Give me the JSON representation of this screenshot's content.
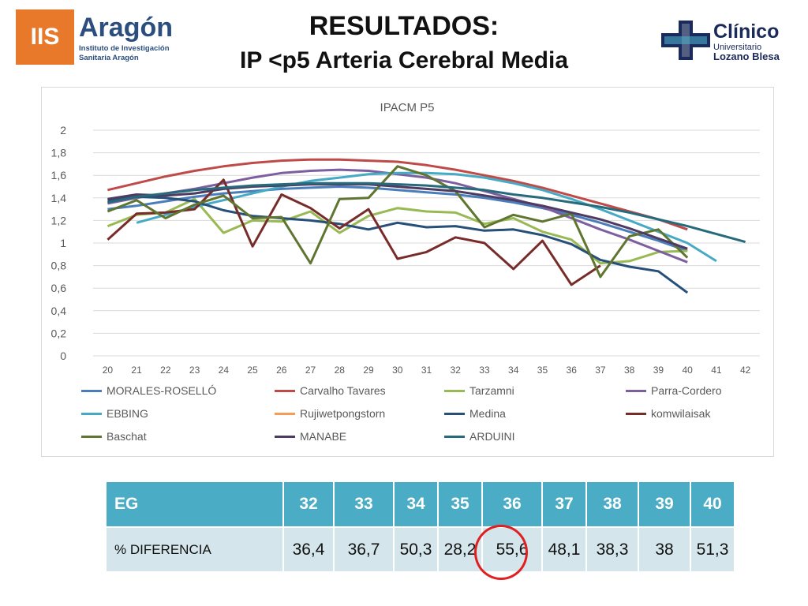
{
  "header": {
    "title_line1": "RESULTADOS:",
    "title_line2": "IP <p5 Arteria Cerebral Media",
    "logo_left": {
      "box": "IIS",
      "name": "Aragón",
      "sub1": "Instituto de Investigación",
      "sub2": "Sanitaria Aragón",
      "color": "#e8792b"
    },
    "logo_right": {
      "name": "Clínico",
      "sub1": "Universitario",
      "sub2": "Lozano Blesa",
      "color": "#1a2a5a"
    }
  },
  "chart_data": {
    "type": "line",
    "title": "IPACM P5",
    "xlabel": "",
    "ylabel": "",
    "x": [
      20,
      21,
      22,
      23,
      24,
      25,
      26,
      27,
      28,
      29,
      30,
      31,
      32,
      33,
      34,
      35,
      36,
      37,
      38,
      39,
      40,
      41,
      42
    ],
    "ylim": [
      0,
      2
    ],
    "yticks": [
      "0",
      "0,2",
      "0,4",
      "0,6",
      "0,8",
      "1",
      "1,2",
      "1,4",
      "1,6",
      "1,8",
      "2"
    ],
    "grid": true,
    "legend_position": "bottom",
    "series": [
      {
        "name": "MORALES-ROSELLÓ",
        "color": "#4a7ebb",
        "x": [
          20,
          21,
          22,
          23,
          24,
          25,
          26,
          27,
          28,
          29,
          30,
          31,
          32,
          33,
          34,
          35,
          36,
          37,
          38,
          39,
          40
        ],
        "values": [
          1.3,
          1.33,
          1.37,
          1.41,
          1.44,
          1.46,
          1.48,
          1.49,
          1.5,
          1.49,
          1.47,
          1.45,
          1.43,
          1.4,
          1.36,
          1.31,
          1.25,
          1.18,
          1.1,
          1.02,
          0.93
        ]
      },
      {
        "name": "Carvalho Tavares",
        "color": "#be4b48",
        "x": [
          20,
          21,
          22,
          23,
          24,
          25,
          26,
          27,
          28,
          29,
          30,
          31,
          32,
          33,
          34,
          35,
          36,
          37,
          38,
          39,
          40
        ],
        "values": [
          1.47,
          1.53,
          1.59,
          1.64,
          1.68,
          1.71,
          1.73,
          1.74,
          1.74,
          1.73,
          1.72,
          1.69,
          1.65,
          1.6,
          1.55,
          1.49,
          1.42,
          1.35,
          1.28,
          1.21,
          1.12
        ]
      },
      {
        "name": "Tarzamni",
        "color": "#98b954",
        "x": [
          20,
          21,
          22,
          23,
          24,
          25,
          26,
          27,
          28,
          29,
          30,
          31,
          32,
          33,
          34,
          35,
          36,
          37,
          38,
          39,
          40
        ],
        "values": [
          1.15,
          1.25,
          1.27,
          1.39,
          1.09,
          1.2,
          1.19,
          1.28,
          1.09,
          1.24,
          1.31,
          1.28,
          1.27,
          1.17,
          1.22,
          1.1,
          1.03,
          0.82,
          0.84,
          0.92,
          0.93
        ]
      },
      {
        "name": "Parra-Cordero",
        "color": "#7d5fa0",
        "x": [
          20,
          21,
          22,
          23,
          24,
          25,
          26,
          27,
          28,
          29,
          30,
          31,
          32,
          33,
          34,
          35,
          36,
          37,
          38,
          39,
          40
        ],
        "values": [
          1.35,
          1.4,
          1.44,
          1.48,
          1.53,
          1.58,
          1.62,
          1.64,
          1.65,
          1.64,
          1.61,
          1.58,
          1.53,
          1.46,
          1.39,
          1.32,
          1.22,
          1.12,
          1.03,
          0.93,
          0.83
        ]
      },
      {
        "name": "EBBING",
        "color": "#46aac5",
        "x": [
          21,
          22,
          23,
          24,
          25,
          26,
          27,
          28,
          29,
          30,
          31,
          32,
          33,
          34,
          35,
          36,
          37,
          38,
          39,
          40,
          41
        ],
        "values": [
          1.18,
          1.25,
          1.32,
          1.38,
          1.44,
          1.5,
          1.55,
          1.58,
          1.61,
          1.62,
          1.62,
          1.61,
          1.58,
          1.53,
          1.47,
          1.39,
          1.3,
          1.2,
          1.1,
          1.0,
          0.84
        ]
      },
      {
        "name": "Rujiwetpongstorn",
        "color": "#f59d56",
        "x": [],
        "values": []
      },
      {
        "name": "Medina",
        "color": "#264f7a",
        "x": [
          20,
          21,
          22,
          23,
          24,
          25,
          26,
          27,
          28,
          29,
          30,
          31,
          32,
          33,
          34,
          35,
          36,
          37,
          38,
          39,
          40
        ],
        "values": [
          1.38,
          1.41,
          1.4,
          1.37,
          1.29,
          1.24,
          1.22,
          1.2,
          1.17,
          1.12,
          1.18,
          1.14,
          1.15,
          1.11,
          1.12,
          1.07,
          0.99,
          0.85,
          0.79,
          0.75,
          0.56
        ]
      },
      {
        "name": "komwilaisak",
        "color": "#772c2a",
        "x": [
          20,
          21,
          22,
          23,
          24,
          25,
          26,
          27,
          28,
          29,
          30,
          31,
          32,
          33,
          34,
          35,
          36,
          37
        ],
        "values": [
          1.03,
          1.26,
          1.27,
          1.3,
          1.56,
          0.97,
          1.43,
          1.31,
          1.13,
          1.3,
          0.86,
          0.92,
          1.05,
          1.0,
          0.77,
          1.02,
          0.63,
          0.8
        ]
      },
      {
        "name": "Baschat",
        "color": "#5f7530",
        "x": [
          20,
          21,
          22,
          23,
          24,
          25,
          26,
          27,
          28,
          29,
          30,
          31,
          32,
          33,
          34,
          35,
          36,
          37,
          38,
          39,
          40
        ],
        "values": [
          1.28,
          1.38,
          1.22,
          1.34,
          1.42,
          1.22,
          1.23,
          0.82,
          1.39,
          1.4,
          1.68,
          1.6,
          1.46,
          1.14,
          1.25,
          1.19,
          1.26,
          0.7,
          1.06,
          1.12,
          0.87
        ]
      },
      {
        "name": "MANABE",
        "color": "#4d3b62",
        "x": [
          20,
          21,
          22,
          23,
          24,
          25,
          26,
          27,
          28,
          29,
          30,
          31,
          32,
          33,
          34,
          35,
          36,
          37,
          38,
          39,
          40
        ],
        "values": [
          1.39,
          1.43,
          1.42,
          1.44,
          1.48,
          1.5,
          1.51,
          1.52,
          1.52,
          1.52,
          1.5,
          1.48,
          1.46,
          1.42,
          1.38,
          1.33,
          1.27,
          1.21,
          1.13,
          1.04,
          0.95
        ]
      },
      {
        "name": "ARDUINI",
        "color": "#276a7c",
        "x": [
          20,
          21,
          22,
          23,
          24,
          25,
          26,
          27,
          28,
          29,
          30,
          31,
          32,
          33,
          34,
          35,
          36,
          37,
          38,
          39,
          40,
          41,
          42
        ],
        "values": [
          1.36,
          1.41,
          1.44,
          1.47,
          1.49,
          1.51,
          1.52,
          1.53,
          1.53,
          1.53,
          1.52,
          1.51,
          1.49,
          1.47,
          1.43,
          1.4,
          1.36,
          1.32,
          1.27,
          1.21,
          1.15,
          1.08,
          1.01
        ]
      }
    ]
  },
  "table": {
    "headers": [
      "EG",
      "32",
      "33",
      "34",
      "35",
      "36",
      "37",
      "38",
      "39",
      "40"
    ],
    "row_label": "% DIFERENCIA",
    "values": [
      "36,4",
      "36,7",
      "50,3",
      "28,2",
      "55,6",
      "48,1",
      "38,3",
      "38",
      "51,3"
    ],
    "highlighted_column": "36"
  }
}
